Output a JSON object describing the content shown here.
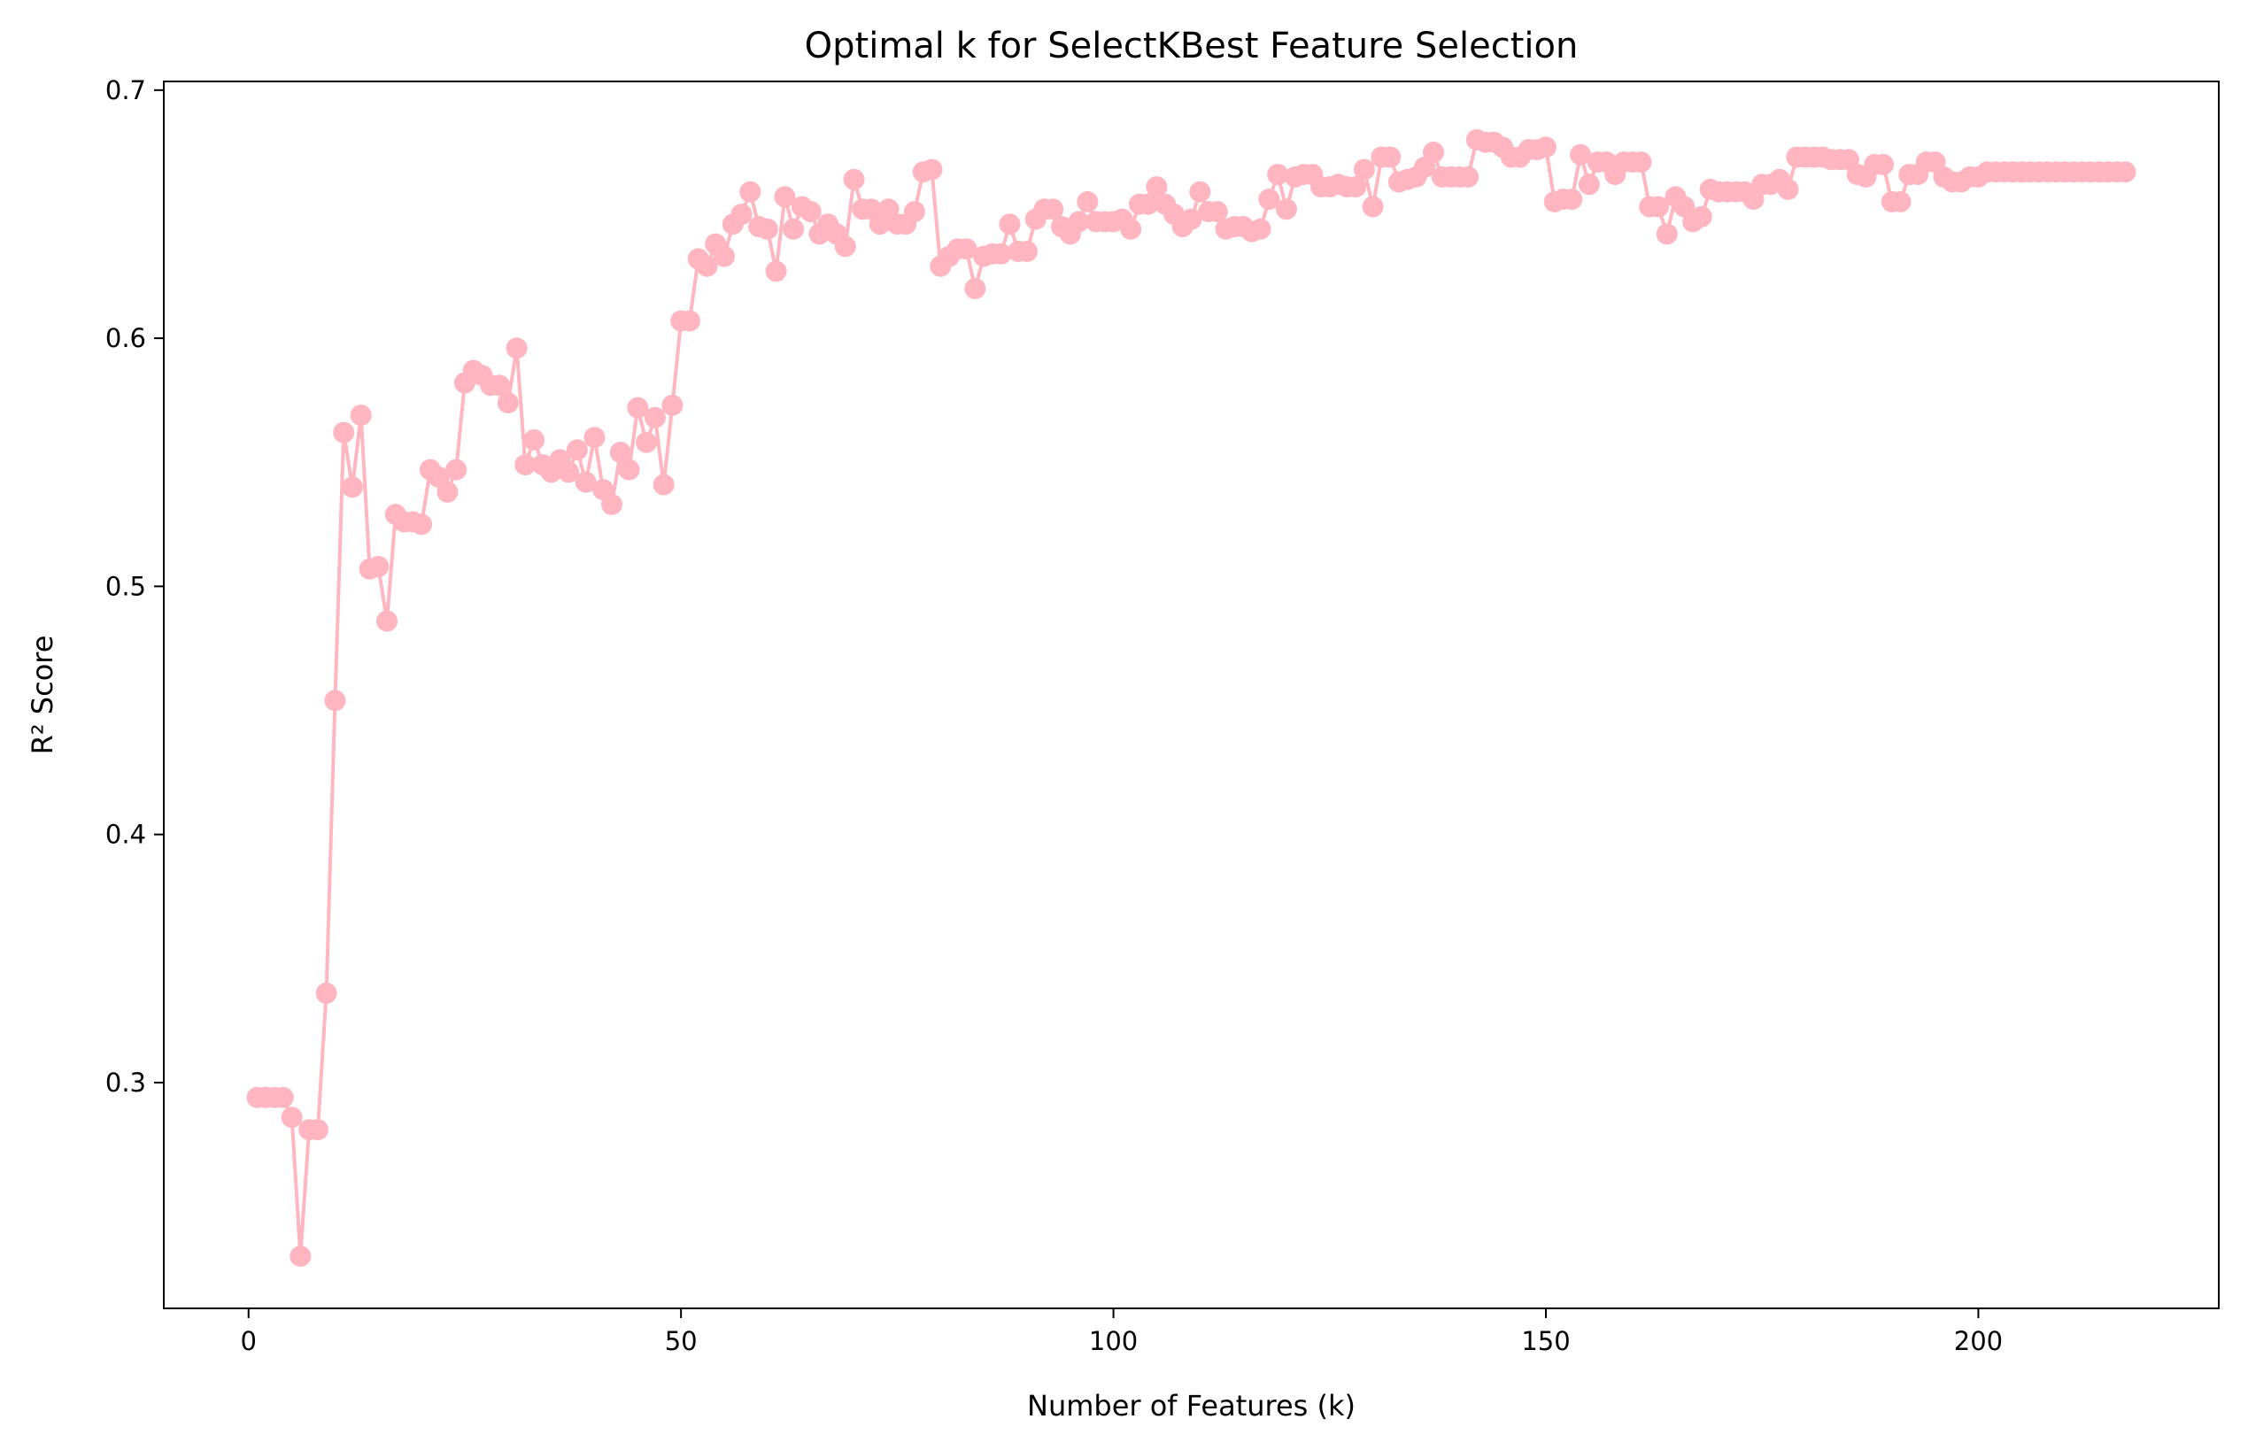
{
  "chart_data": {
    "type": "line",
    "title": "Optimal k for SelectKBest Feature Selection",
    "xlabel": "Number of Features (k)",
    "ylabel": "R² Score",
    "xlim": [
      -9.8,
      227.8
    ],
    "ylim": [
      0.209,
      0.7035
    ],
    "xticks": [
      0,
      50,
      100,
      150,
      200
    ],
    "xtick_labels": [
      "0",
      "50",
      "100",
      "150",
      "200"
    ],
    "yticks": [
      0.3,
      0.4,
      0.5,
      0.6,
      0.7
    ],
    "ytick_labels": [
      "0.3",
      "0.4",
      "0.5",
      "0.6",
      "0.7"
    ],
    "grid": false,
    "legend": "none",
    "marker": "circle",
    "color": "#ffb6c1",
    "series": [
      {
        "x": [
          1,
          2,
          3,
          4,
          5,
          6,
          7,
          8,
          9,
          10,
          11,
          12,
          13,
          14,
          15,
          16,
          17,
          18,
          19,
          20,
          21,
          22,
          23,
          24,
          25,
          26,
          27,
          28,
          29,
          30,
          31,
          32,
          33,
          34,
          35,
          36,
          37,
          38,
          39,
          40,
          41,
          42,
          43,
          44,
          45,
          46,
          47,
          48,
          49,
          50,
          51,
          52,
          53,
          54,
          55,
          56,
          57,
          58,
          59,
          60,
          61,
          62,
          63,
          64,
          65,
          66,
          67,
          68,
          69,
          70,
          71,
          72,
          73,
          74,
          75,
          76,
          77,
          78,
          79,
          80,
          81,
          82,
          83,
          84,
          85,
          86,
          87,
          88,
          89,
          90,
          91,
          92,
          93,
          94,
          95,
          96,
          97,
          98,
          99,
          100,
          101,
          102,
          103,
          104,
          105,
          106,
          107,
          108,
          109,
          110,
          111,
          112,
          113,
          114,
          115,
          116,
          117,
          118,
          119,
          120,
          121,
          122,
          123,
          124,
          125,
          126,
          127,
          128,
          129,
          130,
          131,
          132,
          133,
          134,
          135,
          136,
          137,
          138,
          139,
          140,
          141,
          142,
          143,
          144,
          145,
          146,
          147,
          148,
          149,
          150,
          151,
          152,
          153,
          154,
          155,
          156,
          157,
          158,
          159,
          160,
          161,
          162,
          163,
          164,
          165,
          166,
          167,
          168,
          169,
          170,
          171,
          172,
          173,
          174,
          175,
          176,
          177,
          178,
          179,
          180,
          181,
          182,
          183,
          184,
          185,
          186,
          187,
          188,
          189,
          190,
          191,
          192,
          193,
          194,
          195,
          196,
          197,
          198,
          199,
          200,
          201,
          202,
          203,
          204,
          205,
          206,
          207,
          208,
          209,
          210,
          211,
          212,
          213,
          214,
          215,
          216,
          217
        ],
        "y": [
          0.294,
          0.294,
          0.294,
          0.294,
          0.286,
          0.23,
          0.281,
          0.281,
          0.336,
          0.454,
          0.562,
          0.54,
          0.569,
          0.507,
          0.508,
          0.486,
          0.529,
          0.526,
          0.526,
          0.525,
          0.547,
          0.544,
          0.538,
          0.547,
          0.582,
          0.587,
          0.585,
          0.581,
          0.581,
          0.574,
          0.596,
          0.549,
          0.559,
          0.549,
          0.546,
          0.551,
          0.546,
          0.555,
          0.542,
          0.56,
          0.539,
          0.533,
          0.554,
          0.547,
          0.572,
          0.558,
          0.568,
          0.541,
          0.573,
          0.607,
          0.607,
          0.632,
          0.629,
          0.638,
          0.633,
          0.646,
          0.65,
          0.659,
          0.645,
          0.644,
          0.627,
          0.657,
          0.644,
          0.653,
          0.651,
          0.642,
          0.646,
          0.642,
          0.637,
          0.664,
          0.652,
          0.652,
          0.646,
          0.652,
          0.646,
          0.646,
          0.651,
          0.667,
          0.668,
          0.629,
          0.633,
          0.636,
          0.636,
          0.62,
          0.633,
          0.634,
          0.634,
          0.646,
          0.635,
          0.635,
          0.648,
          0.652,
          0.652,
          0.645,
          0.642,
          0.647,
          0.655,
          0.647,
          0.647,
          0.647,
          0.648,
          0.644,
          0.654,
          0.654,
          0.661,
          0.654,
          0.65,
          0.645,
          0.648,
          0.659,
          0.651,
          0.651,
          0.644,
          0.645,
          0.645,
          0.643,
          0.644,
          0.656,
          0.666,
          0.652,
          0.665,
          0.666,
          0.666,
          0.661,
          0.661,
          0.662,
          0.661,
          0.661,
          0.668,
          0.653,
          0.673,
          0.673,
          0.663,
          0.664,
          0.665,
          0.669,
          0.675,
          0.665,
          0.665,
          0.665,
          0.665,
          0.68,
          0.679,
          0.679,
          0.677,
          0.673,
          0.673,
          0.676,
          0.676,
          0.677,
          0.655,
          0.656,
          0.656,
          0.674,
          0.662,
          0.671,
          0.671,
          0.666,
          0.671,
          0.671,
          0.671,
          0.653,
          0.653,
          0.642,
          0.657,
          0.653,
          0.647,
          0.649,
          0.66,
          0.659,
          0.659,
          0.659,
          0.659,
          0.656,
          0.662,
          0.662,
          0.664,
          0.66,
          0.673,
          0.673,
          0.673,
          0.673,
          0.672,
          0.672,
          0.672,
          0.666,
          0.665,
          0.67,
          0.67,
          0.655,
          0.655,
          0.666,
          0.666,
          0.671,
          0.671,
          0.665,
          0.663,
          0.663,
          0.665,
          0.665,
          0.667,
          0.667,
          0.667,
          0.667,
          0.667,
          0.667,
          0.667,
          0.667,
          0.667,
          0.667,
          0.667,
          0.667,
          0.667,
          0.667,
          0.667,
          0.667,
          0.667
        ]
      }
    ]
  }
}
